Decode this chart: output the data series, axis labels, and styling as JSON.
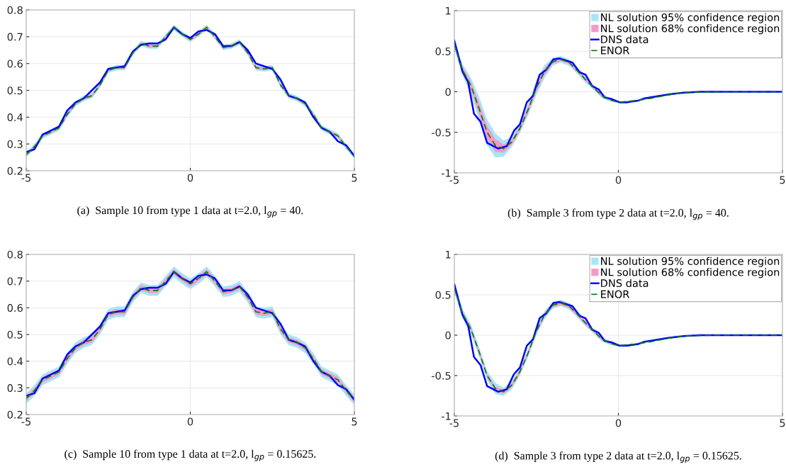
{
  "chart_data": [
    {
      "type": "line",
      "annotations": [
        "(a)  Sample 10 from type 1 data at t=2.0, l$_{gp}$ = 40."
      ],
      "xlim": [
        -5,
        5
      ],
      "ylim": [
        0.2,
        0.8
      ],
      "xticks": [
        -5,
        0,
        5
      ],
      "yticks": [
        0.2,
        0.3,
        0.4,
        0.5,
        0.6,
        0.7,
        0.8
      ],
      "grid": true,
      "legend": false,
      "x": [
        -5,
        -4.75,
        -4.5,
        -4.25,
        -4,
        -3.75,
        -3.5,
        -3.25,
        -3,
        -2.75,
        -2.5,
        -2.25,
        -2,
        -1.75,
        -1.5,
        -1.25,
        -1,
        -0.75,
        -0.5,
        -0.25,
        0,
        0.25,
        0.5,
        0.75,
        1,
        1.25,
        1.5,
        1.75,
        2,
        2.25,
        2.5,
        2.75,
        3,
        3.25,
        3.5,
        3.75,
        4,
        4.25,
        4.5,
        4.75,
        5
      ],
      "series": [
        {
          "type": "area",
          "color": "#a6e6f7",
          "values": [
            null,
            null,
            null,
            null,
            null,
            null,
            null,
            null,
            null,
            null,
            null,
            null,
            null,
            null,
            null,
            null,
            null,
            null,
            null,
            null,
            null,
            null,
            null,
            null,
            null,
            null,
            null,
            null,
            null,
            null,
            null,
            null,
            null,
            null,
            null,
            null,
            null,
            null,
            null,
            null,
            null
          ],
          "lower": [
            0.25,
            0.28,
            0.32,
            0.335,
            0.35,
            0.4,
            0.44,
            0.46,
            0.47,
            0.51,
            0.565,
            0.575,
            0.575,
            0.63,
            0.665,
            0.655,
            0.655,
            0.69,
            0.725,
            0.7,
            0.68,
            0.7,
            0.725,
            0.69,
            0.65,
            0.655,
            0.67,
            0.63,
            0.575,
            0.57,
            0.575,
            0.51,
            0.47,
            0.46,
            0.44,
            0.4,
            0.35,
            0.335,
            0.32,
            0.28,
            0.245
          ],
          "upper": [
            0.27,
            0.3,
            0.34,
            0.355,
            0.37,
            0.42,
            0.46,
            0.48,
            0.49,
            0.53,
            0.585,
            0.595,
            0.595,
            0.65,
            0.685,
            0.675,
            0.675,
            0.71,
            0.745,
            0.72,
            0.7,
            0.72,
            0.745,
            0.71,
            0.67,
            0.675,
            0.69,
            0.65,
            0.595,
            0.59,
            0.595,
            0.53,
            0.49,
            0.48,
            0.46,
            0.42,
            0.37,
            0.355,
            0.34,
            0.3,
            0.265
          ]
        },
        {
          "type": "area",
          "color": "#f59ac8",
          "values": [
            null,
            null,
            null,
            null,
            null,
            null,
            null,
            null,
            null,
            null,
            null,
            null,
            null,
            null,
            null,
            null,
            null,
            null,
            null,
            null,
            null,
            null,
            null,
            null,
            null,
            null,
            null,
            null,
            null,
            null,
            null,
            null,
            null,
            null,
            null,
            null,
            null,
            null,
            null,
            null,
            null
          ],
          "lower": [
            0.255,
            0.285,
            0.325,
            0.34,
            0.355,
            0.405,
            0.445,
            0.465,
            0.475,
            0.515,
            0.57,
            0.58,
            0.58,
            0.635,
            0.67,
            0.66,
            0.66,
            0.695,
            0.73,
            0.705,
            0.685,
            0.705,
            0.73,
            0.695,
            0.655,
            0.66,
            0.675,
            0.635,
            0.58,
            0.575,
            0.58,
            0.515,
            0.475,
            0.465,
            0.445,
            0.405,
            0.355,
            0.34,
            0.325,
            0.285,
            0.25
          ],
          "upper": [
            0.265,
            0.295,
            0.335,
            0.35,
            0.365,
            0.415,
            0.455,
            0.475,
            0.485,
            0.525,
            0.58,
            0.59,
            0.59,
            0.645,
            0.68,
            0.67,
            0.67,
            0.705,
            0.74,
            0.715,
            0.695,
            0.715,
            0.74,
            0.705,
            0.665,
            0.67,
            0.685,
            0.645,
            0.59,
            0.585,
            0.59,
            0.525,
            0.485,
            0.475,
            0.455,
            0.415,
            0.365,
            0.35,
            0.335,
            0.295,
            0.26
          ]
        },
        {
          "color": "#0000ff",
          "line_style": "solid",
          "values": [
            0.27,
            0.28,
            0.335,
            0.35,
            0.365,
            0.425,
            0.455,
            0.47,
            0.5,
            0.53,
            0.58,
            0.585,
            0.59,
            0.645,
            0.67,
            0.675,
            0.675,
            0.69,
            0.735,
            0.71,
            0.695,
            0.72,
            0.725,
            0.71,
            0.665,
            0.665,
            0.68,
            0.65,
            0.6,
            0.59,
            0.58,
            0.54,
            0.48,
            0.47,
            0.455,
            0.4,
            0.36,
            0.345,
            0.31,
            0.295,
            0.255
          ]
        },
        {
          "color": "#008000",
          "line_style": "dashed",
          "values": [
            0.26,
            0.29,
            0.33,
            0.345,
            0.36,
            0.41,
            0.45,
            0.47,
            0.48,
            0.52,
            0.575,
            0.585,
            0.585,
            0.64,
            0.675,
            0.665,
            0.665,
            0.7,
            0.735,
            0.71,
            0.69,
            0.71,
            0.735,
            0.7,
            0.66,
            0.665,
            0.68,
            0.64,
            0.585,
            0.58,
            0.585,
            0.52,
            0.48,
            0.47,
            0.45,
            0.41,
            0.36,
            0.345,
            0.33,
            0.29,
            0.255
          ]
        }
      ]
    },
    {
      "type": "line",
      "annotations": [
        "(b)  Sample 3 from type 2 data at t=2.0, l$_{gp}$ = 40."
      ],
      "xlim": [
        -5,
        5
      ],
      "ylim": [
        -1,
        1
      ],
      "xticks": [
        -5,
        0,
        5
      ],
      "yticks": [
        -1,
        -0.5,
        0,
        0.5,
        1
      ],
      "grid": true,
      "legend": "top right",
      "x": [
        -5,
        -4.75,
        -4.5,
        -4.25,
        -4,
        -3.75,
        -3.5,
        -3.25,
        -3,
        -2.75,
        -2.5,
        -2.25,
        -2,
        -1.75,
        -1.5,
        -1.25,
        -1,
        -0.75,
        -0.5,
        -0.25,
        0,
        0.5,
        1,
        1.5,
        2,
        3,
        5
      ],
      "series": [
        {
          "name": "NL solution 95% confidence region",
          "type": "area",
          "color": "#a6e6f7",
          "values": [
            null,
            null,
            null,
            null,
            null,
            null,
            null,
            null,
            null,
            null,
            null,
            null,
            null,
            null,
            null,
            null,
            null,
            null,
            null,
            null,
            null,
            null,
            null,
            null,
            null,
            null,
            null
          ],
          "lower": [
            0.53,
            0.2,
            -0.02,
            -0.34,
            -0.66,
            -0.81,
            -0.8,
            -0.68,
            -0.51,
            -0.29,
            -0.04,
            0.17,
            0.32,
            0.36,
            0.32,
            0.22,
            0.11,
            0.02,
            -0.08,
            -0.12,
            -0.14,
            -0.12,
            -0.085,
            -0.045,
            -0.01,
            0,
            0
          ],
          "upper": [
            0.63,
            0.34,
            0.18,
            -0.06,
            -0.34,
            -0.51,
            -0.6,
            -0.56,
            -0.39,
            -0.15,
            0.14,
            0.33,
            0.42,
            0.44,
            0.4,
            0.3,
            0.19,
            0.08,
            -0.02,
            -0.08,
            -0.12,
            -0.1,
            -0.075,
            -0.035,
            -0.01,
            0,
            0
          ]
        },
        {
          "name": "NL solution 68% confidence region",
          "type": "area",
          "color": "#f59ac8",
          "values": [
            null,
            null,
            null,
            null,
            null,
            null,
            null,
            null,
            null,
            null,
            null,
            null,
            null,
            null,
            null,
            null,
            null,
            null,
            null,
            null,
            null,
            null,
            null,
            null,
            null,
            null,
            null
          ],
          "lower": [
            0.55,
            0.23,
            0.03,
            -0.27,
            -0.58,
            -0.74,
            -0.75,
            -0.65,
            -0.48,
            -0.26,
            0,
            0.21,
            0.34,
            0.38,
            0.34,
            0.24,
            0.13,
            0.035,
            -0.065,
            -0.11,
            -0.135,
            -0.115,
            -0.08,
            -0.04,
            -0.01,
            0,
            0
          ],
          "upper": [
            0.61,
            0.31,
            0.13,
            -0.13,
            -0.42,
            -0.58,
            -0.65,
            -0.59,
            -0.42,
            -0.18,
            0.1,
            0.29,
            0.4,
            0.42,
            0.38,
            0.28,
            0.17,
            0.065,
            -0.035,
            -0.09,
            -0.125,
            -0.105,
            -0.08,
            -0.04,
            -0.01,
            0,
            0
          ]
        },
        {
          "name": "DNS data",
          "color": "#0000ff",
          "line_style": "solid",
          "x": [
            -5,
            -4.75,
            -4.58,
            -4.4,
            -4.2,
            -4.0,
            -3.66,
            -3.4,
            -3.18,
            -3.0,
            -2.79,
            -2.6,
            -2.4,
            -2.2,
            -1.98,
            -1.8,
            -1.4,
            -1.18,
            -1.0,
            -0.8,
            -0.6,
            -0.42,
            -0.2,
            0.04,
            0.27,
            0.6,
            0.8,
            1.26,
            1.56,
            2.0,
            2.5,
            3,
            4,
            5
          ],
          "values": [
            0.63,
            0.25,
            0.12,
            -0.27,
            -0.37,
            -0.63,
            -0.7,
            -0.67,
            -0.48,
            -0.4,
            -0.13,
            -0.05,
            0.21,
            0.27,
            0.4,
            0.41,
            0.36,
            0.24,
            0.21,
            0.07,
            0.03,
            -0.07,
            -0.09,
            -0.13,
            -0.13,
            -0.11,
            -0.08,
            -0.05,
            -0.03,
            -0.01,
            0,
            0,
            0,
            0
          ]
        },
        {
          "name": "ENOR",
          "color": "#008000",
          "line_style": "dashed",
          "values": [
            0.58,
            0.27,
            0.08,
            -0.2,
            -0.5,
            -0.66,
            -0.7,
            -0.62,
            -0.45,
            -0.22,
            0.05,
            0.25,
            0.37,
            0.4,
            0.36,
            0.26,
            0.15,
            0.05,
            -0.05,
            -0.1,
            -0.13,
            -0.11,
            -0.08,
            -0.04,
            -0.01,
            0,
            0
          ]
        }
      ]
    },
    {
      "type": "line",
      "annotations": [
        "(c)  Sample 10 from type 1 data at t=2.0, l$_{gp}$ = 0.15625."
      ],
      "xlim": [
        -5,
        5
      ],
      "ylim": [
        0.2,
        0.8
      ],
      "xticks": [
        -5,
        0,
        5
      ],
      "yticks": [
        0.2,
        0.3,
        0.4,
        0.5,
        0.6,
        0.7,
        0.8
      ],
      "grid": true,
      "legend": false,
      "x": [
        -5,
        -4.75,
        -4.5,
        -4.25,
        -4,
        -3.75,
        -3.5,
        -3.25,
        -3,
        -2.75,
        -2.5,
        -2.25,
        -2,
        -1.75,
        -1.5,
        -1.25,
        -1,
        -0.75,
        -0.5,
        -0.25,
        0,
        0.25,
        0.5,
        0.75,
        1,
        1.25,
        1.5,
        1.75,
        2,
        2.25,
        2.5,
        2.75,
        3,
        3.25,
        3.5,
        3.75,
        4,
        4.25,
        4.5,
        4.75,
        5
      ],
      "series": [
        {
          "type": "area",
          "color": "#a6e6f7",
          "values": [
            null,
            null,
            null,
            null,
            null,
            null,
            null,
            null,
            null,
            null,
            null,
            null,
            null,
            null,
            null,
            null,
            null,
            null,
            null,
            null,
            null,
            null,
            null,
            null,
            null,
            null,
            null,
            null,
            null,
            null,
            null,
            null,
            null,
            null,
            null,
            null,
            null,
            null,
            null,
            null,
            null
          ],
          "lower": [
            0.24,
            0.27,
            0.31,
            0.325,
            0.34,
            0.39,
            0.43,
            0.45,
            0.46,
            0.5,
            0.555,
            0.565,
            0.565,
            0.62,
            0.655,
            0.645,
            0.645,
            0.68,
            0.715,
            0.69,
            0.67,
            0.69,
            0.715,
            0.68,
            0.64,
            0.645,
            0.66,
            0.62,
            0.565,
            0.56,
            0.565,
            0.5,
            0.46,
            0.45,
            0.43,
            0.39,
            0.34,
            0.325,
            0.31,
            0.27,
            0.235
          ],
          "upper": [
            0.28,
            0.31,
            0.35,
            0.365,
            0.38,
            0.43,
            0.47,
            0.49,
            0.5,
            0.54,
            0.595,
            0.605,
            0.605,
            0.66,
            0.695,
            0.685,
            0.685,
            0.72,
            0.755,
            0.73,
            0.71,
            0.73,
            0.755,
            0.72,
            0.68,
            0.685,
            0.7,
            0.66,
            0.605,
            0.6,
            0.605,
            0.54,
            0.5,
            0.49,
            0.47,
            0.43,
            0.38,
            0.365,
            0.35,
            0.31,
            0.275
          ]
        },
        {
          "type": "area",
          "color": "#f59ac8",
          "values": [
            null,
            null,
            null,
            null,
            null,
            null,
            null,
            null,
            null,
            null,
            null,
            null,
            null,
            null,
            null,
            null,
            null,
            null,
            null,
            null,
            null,
            null,
            null,
            null,
            null,
            null,
            null,
            null,
            null,
            null,
            null,
            null,
            null,
            null,
            null,
            null,
            null,
            null,
            null,
            null,
            null
          ],
          "lower": [
            0.25,
            0.28,
            0.32,
            0.335,
            0.35,
            0.4,
            0.44,
            0.46,
            0.47,
            0.51,
            0.565,
            0.575,
            0.575,
            0.63,
            0.665,
            0.655,
            0.655,
            0.69,
            0.725,
            0.7,
            0.68,
            0.7,
            0.725,
            0.69,
            0.65,
            0.655,
            0.67,
            0.63,
            0.575,
            0.57,
            0.575,
            0.51,
            0.47,
            0.46,
            0.44,
            0.4,
            0.35,
            0.335,
            0.32,
            0.28,
            0.245
          ],
          "upper": [
            0.27,
            0.3,
            0.34,
            0.355,
            0.37,
            0.42,
            0.46,
            0.48,
            0.49,
            0.53,
            0.585,
            0.595,
            0.595,
            0.65,
            0.685,
            0.675,
            0.675,
            0.71,
            0.745,
            0.72,
            0.7,
            0.72,
            0.745,
            0.71,
            0.67,
            0.675,
            0.69,
            0.65,
            0.595,
            0.59,
            0.595,
            0.53,
            0.49,
            0.48,
            0.46,
            0.42,
            0.37,
            0.355,
            0.34,
            0.3,
            0.265
          ]
        },
        {
          "color": "#0000ff",
          "line_style": "solid",
          "values": [
            0.27,
            0.28,
            0.335,
            0.35,
            0.365,
            0.425,
            0.455,
            0.47,
            0.5,
            0.53,
            0.58,
            0.585,
            0.59,
            0.645,
            0.67,
            0.675,
            0.675,
            0.69,
            0.735,
            0.71,
            0.695,
            0.72,
            0.725,
            0.71,
            0.665,
            0.665,
            0.68,
            0.65,
            0.6,
            0.59,
            0.58,
            0.54,
            0.48,
            0.47,
            0.455,
            0.4,
            0.36,
            0.345,
            0.31,
            0.295,
            0.255
          ]
        },
        {
          "color": "#008000",
          "line_style": "dashed",
          "values": [
            0.26,
            0.29,
            0.33,
            0.345,
            0.36,
            0.41,
            0.45,
            0.47,
            0.48,
            0.52,
            0.575,
            0.585,
            0.585,
            0.64,
            0.675,
            0.665,
            0.665,
            0.7,
            0.735,
            0.71,
            0.69,
            0.71,
            0.735,
            0.7,
            0.66,
            0.665,
            0.68,
            0.64,
            0.585,
            0.58,
            0.585,
            0.52,
            0.48,
            0.47,
            0.45,
            0.41,
            0.36,
            0.345,
            0.33,
            0.29,
            0.255
          ]
        }
      ]
    },
    {
      "type": "line",
      "annotations": [
        "(d)  Sample 3 from type 2 data at t=2.0, l$_{gp}$ = 0.15625."
      ],
      "xlim": [
        -5,
        5
      ],
      "ylim": [
        -1,
        1
      ],
      "xticks": [
        -5,
        0,
        5
      ],
      "yticks": [
        -1,
        -0.5,
        0,
        0.5,
        1
      ],
      "grid": true,
      "legend": "top right",
      "x": [
        -5,
        -4.75,
        -4.5,
        -4.25,
        -4,
        -3.75,
        -3.5,
        -3.25,
        -3,
        -2.75,
        -2.5,
        -2.25,
        -2,
        -1.75,
        -1.5,
        -1.25,
        -1,
        -0.75,
        -0.5,
        -0.25,
        0,
        0.5,
        1,
        1.5,
        2,
        3,
        5
      ],
      "series": [
        {
          "name": "NL solution 95% confidence region",
          "type": "area",
          "color": "#a6e6f7",
          "values": [
            null,
            null,
            null,
            null,
            null,
            null,
            null,
            null,
            null,
            null,
            null,
            null,
            null,
            null,
            null,
            null,
            null,
            null,
            null,
            null,
            null,
            null,
            null,
            null,
            null,
            null,
            null
          ],
          "lower": [
            0.53,
            0.21,
            0.02,
            -0.26,
            -0.56,
            -0.73,
            -0.75,
            -0.67,
            -0.5,
            -0.27,
            0,
            0.2,
            0.33,
            0.36,
            0.32,
            0.22,
            0.11,
            0.02,
            -0.08,
            -0.12,
            -0.14,
            -0.12,
            -0.085,
            -0.045,
            -0.01,
            0,
            0
          ],
          "upper": [
            0.63,
            0.33,
            0.14,
            -0.14,
            -0.44,
            -0.59,
            -0.65,
            -0.57,
            -0.4,
            -0.17,
            0.1,
            0.3,
            0.41,
            0.44,
            0.4,
            0.3,
            0.19,
            0.08,
            -0.02,
            -0.08,
            -0.12,
            -0.1,
            -0.075,
            -0.035,
            -0.01,
            0,
            0
          ]
        },
        {
          "name": "NL solution 68% confidence region",
          "type": "area",
          "color": "#f59ac8",
          "values": [
            null,
            null,
            null,
            null,
            null,
            null,
            null,
            null,
            null,
            null,
            null,
            null,
            null,
            null,
            null,
            null,
            null,
            null,
            null,
            null,
            null,
            null,
            null,
            null,
            null,
            null,
            null
          ],
          "lower": [
            0.555,
            0.245,
            0.055,
            -0.225,
            -0.525,
            -0.685,
            -0.725,
            -0.645,
            -0.475,
            -0.245,
            0.025,
            0.225,
            0.345,
            0.375,
            0.335,
            0.235,
            0.125,
            0.035,
            -0.065,
            -0.11,
            -0.135,
            -0.115,
            -0.08,
            -0.04,
            -0.01,
            0,
            0
          ],
          "upper": [
            0.605,
            0.295,
            0.105,
            -0.175,
            -0.475,
            -0.635,
            -0.675,
            -0.595,
            -0.425,
            -0.195,
            0.075,
            0.275,
            0.395,
            0.425,
            0.385,
            0.285,
            0.175,
            0.065,
            -0.035,
            -0.09,
            -0.125,
            -0.105,
            -0.08,
            -0.04,
            -0.01,
            0,
            0
          ]
        },
        {
          "name": "DNS data",
          "color": "#0000ff",
          "line_style": "solid",
          "x": [
            -5,
            -4.75,
            -4.58,
            -4.4,
            -4.2,
            -4.0,
            -3.66,
            -3.4,
            -3.18,
            -3.0,
            -2.79,
            -2.6,
            -2.4,
            -2.2,
            -1.98,
            -1.8,
            -1.4,
            -1.18,
            -1.0,
            -0.8,
            -0.6,
            -0.42,
            -0.2,
            0.04,
            0.27,
            0.6,
            0.8,
            1.26,
            1.56,
            2.0,
            2.5,
            3,
            4,
            5
          ],
          "values": [
            0.63,
            0.25,
            0.12,
            -0.27,
            -0.37,
            -0.63,
            -0.7,
            -0.67,
            -0.48,
            -0.4,
            -0.13,
            -0.05,
            0.21,
            0.27,
            0.4,
            0.41,
            0.36,
            0.24,
            0.21,
            0.07,
            0.03,
            -0.07,
            -0.09,
            -0.13,
            -0.13,
            -0.11,
            -0.08,
            -0.05,
            -0.03,
            -0.01,
            0,
            0,
            0,
            0
          ]
        },
        {
          "name": "ENOR",
          "color": "#008000",
          "line_style": "dashed",
          "values": [
            0.58,
            0.27,
            0.08,
            -0.2,
            -0.5,
            -0.66,
            -0.7,
            -0.62,
            -0.45,
            -0.22,
            0.05,
            0.25,
            0.37,
            0.4,
            0.36,
            0.26,
            0.15,
            0.05,
            -0.05,
            -0.1,
            -0.13,
            -0.11,
            -0.08,
            -0.04,
            -0.01,
            0,
            0
          ]
        }
      ]
    }
  ]
}
